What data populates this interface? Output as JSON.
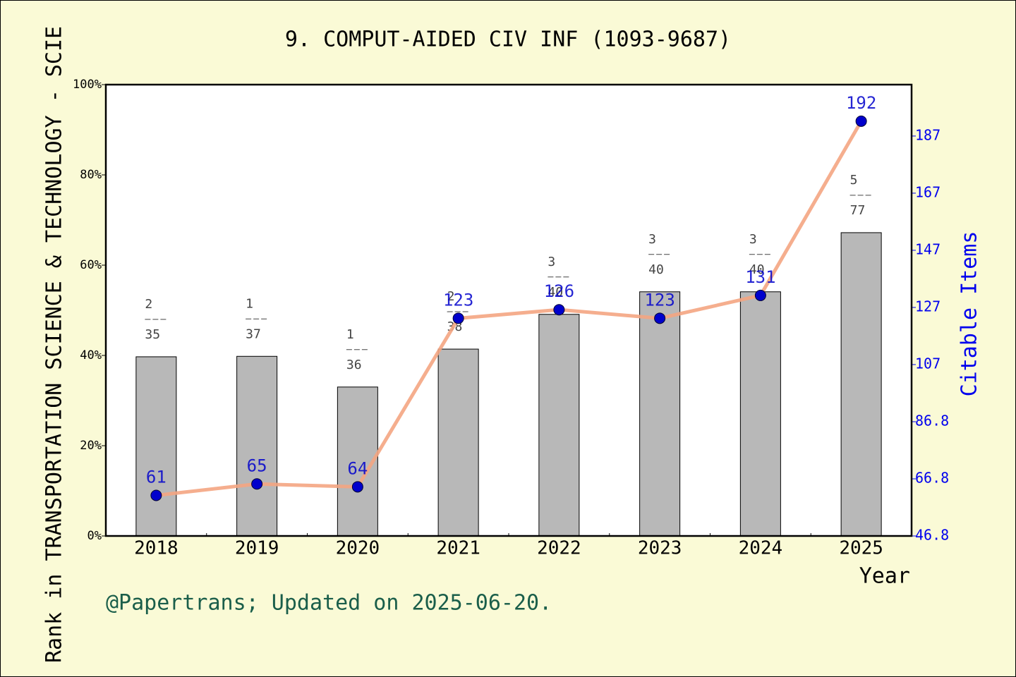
{
  "chart_data": {
    "type": "bar-line",
    "title": "9. COMPUT-AIDED CIV INF (1093-9687)",
    "y_label": "Rank in TRANSPORTATION SCIENCE & TECHNOLOGY - SCIE",
    "y2_label": "Citable Items",
    "x_label": "Year",
    "footer": "@Papertrans; Updated on 2025-06-20.",
    "categories": [
      "2018",
      "2019",
      "2020",
      "2021",
      "2022",
      "2023",
      "2024",
      "2025"
    ],
    "series": [
      {
        "type": "bar",
        "color": "#b8b8b8",
        "values": [
          39.7,
          39.8,
          33.0,
          41.4,
          49.1,
          54.1,
          54.1,
          67.2
        ],
        "ranks": [
          2,
          1,
          1,
          2,
          3,
          3,
          3,
          5
        ],
        "totals": [
          35,
          37,
          36,
          38,
          40,
          40,
          40,
          77
        ]
      },
      {
        "type": "line",
        "axis": "y2",
        "color": "#f4a582",
        "marker_color": "#0000cc",
        "values": [
          61,
          65,
          64,
          123,
          126,
          123,
          131,
          192
        ]
      }
    ],
    "ylim": [
      0,
      100
    ],
    "yticks": [
      {
        "value": 0,
        "label": "0%"
      },
      {
        "value": 20,
        "label": "20%"
      },
      {
        "value": 40,
        "label": "40%"
      },
      {
        "value": 60,
        "label": "60%"
      },
      {
        "value": 80,
        "label": "80%"
      },
      {
        "value": 100,
        "label": "100%"
      }
    ],
    "y2lim": [
      46.8,
      204.8
    ],
    "y2ticks": [
      46.8,
      66.8,
      86.8,
      {
        "value": 106.8,
        "label": "107"
      },
      {
        "value": 126.8,
        "label": "127"
      },
      {
        "value": 146.8,
        "label": "147"
      },
      {
        "value": 166.8,
        "label": "167"
      },
      {
        "value": 186.8,
        "label": "187"
      }
    ]
  }
}
